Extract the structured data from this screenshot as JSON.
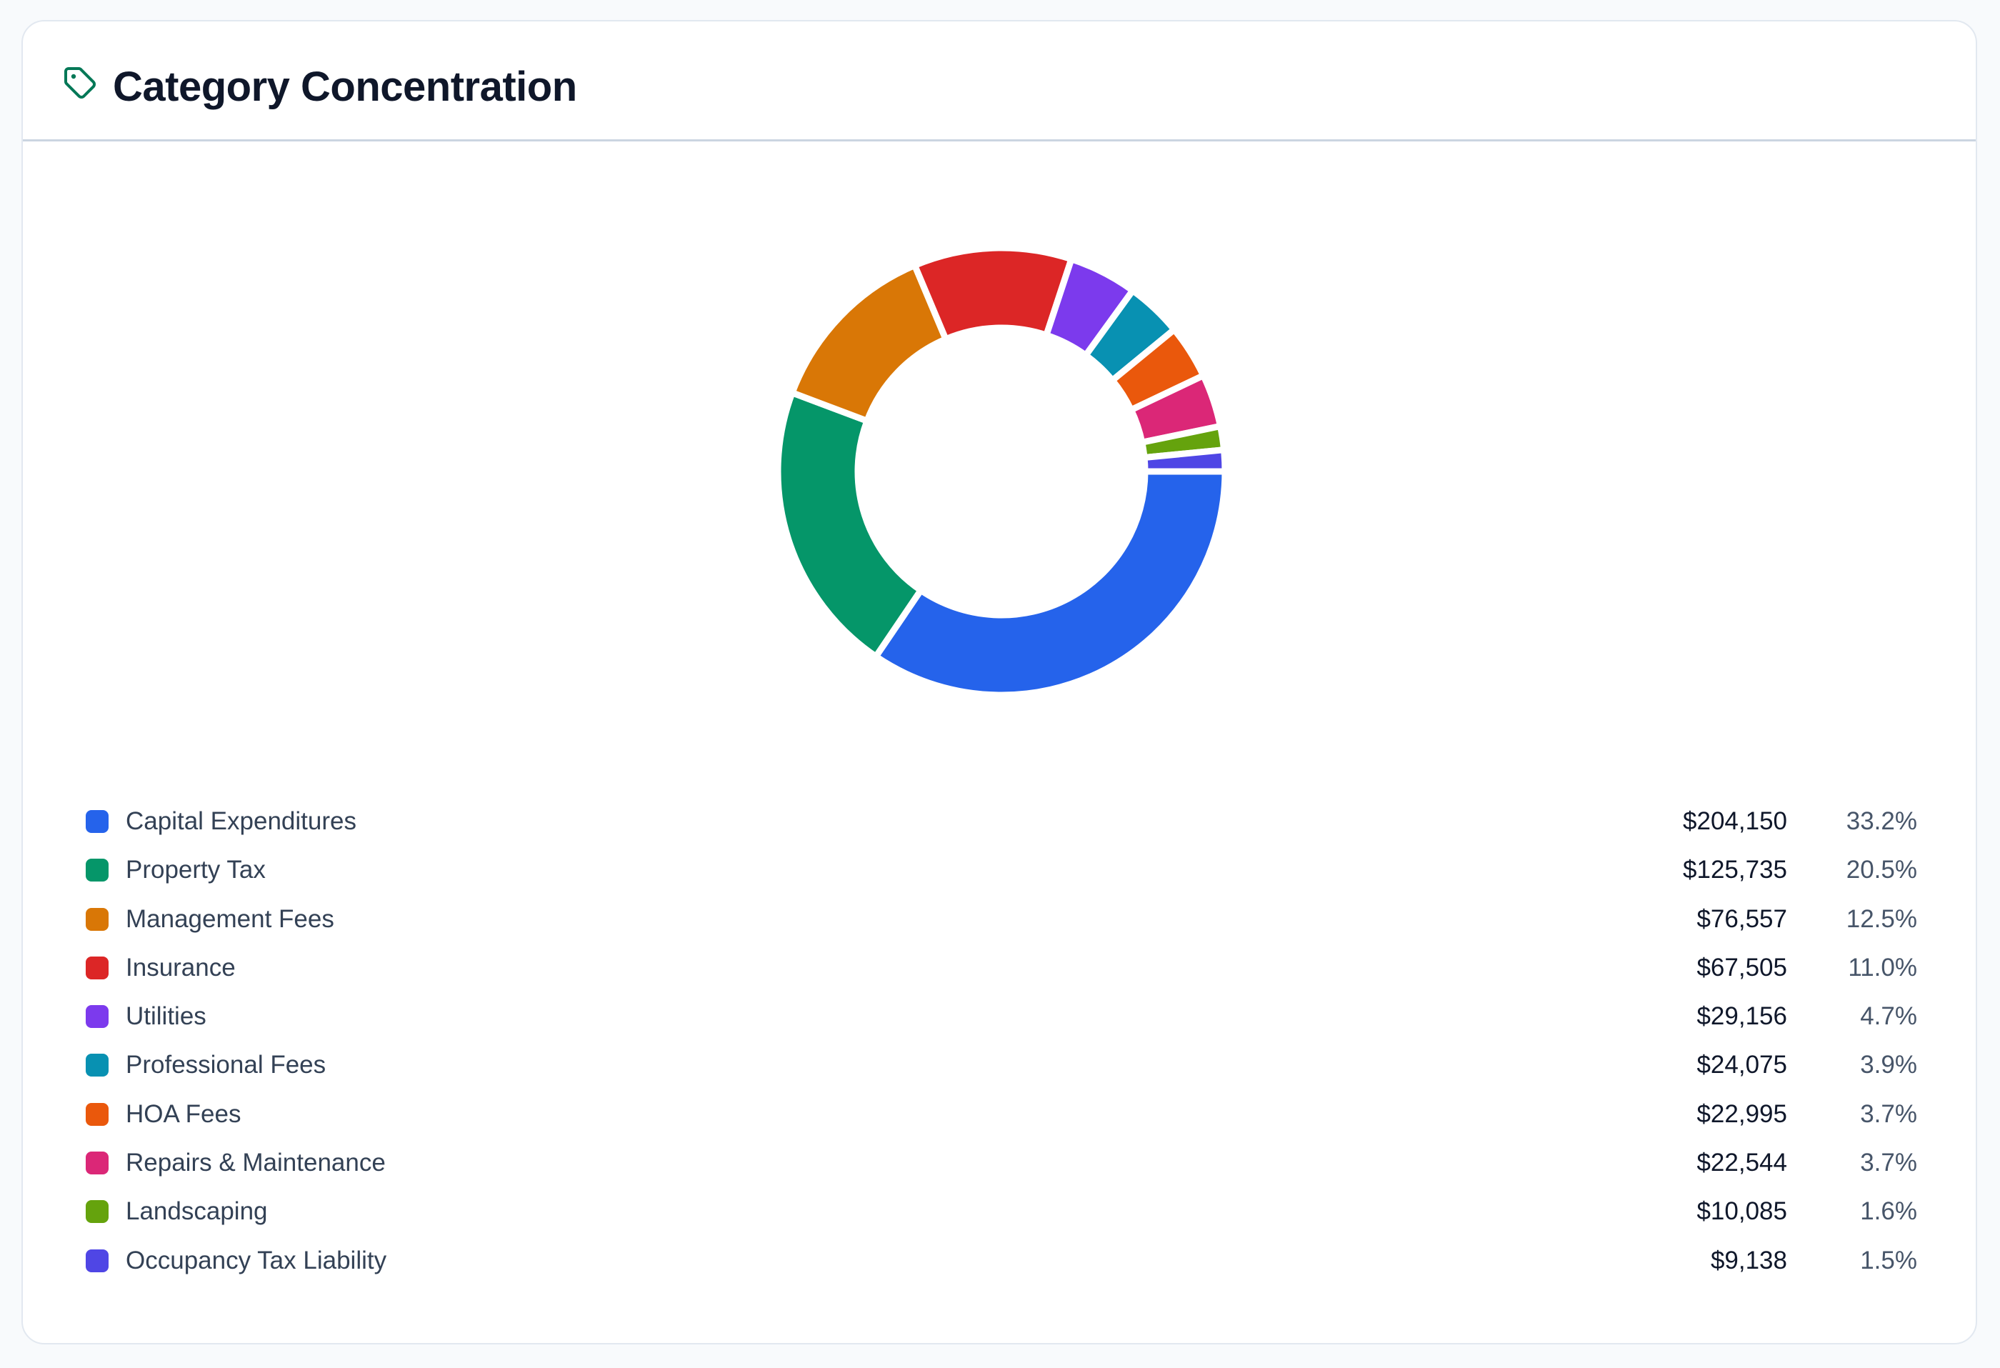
{
  "card": {
    "title": "Category Concentration",
    "icon": "tag-icon",
    "icon_color": "#047857"
  },
  "chart_data": {
    "type": "pie",
    "variant": "donut",
    "title": "Category Concentration",
    "start": "right (3 o'clock), clockwise",
    "categories": [
      "Capital Expenditures",
      "Property Tax",
      "Management Fees",
      "Insurance",
      "Utilities",
      "Professional Fees",
      "HOA Fees",
      "Repairs & Maintenance",
      "Landscaping",
      "Occupancy Tax Liability"
    ],
    "values": [
      204150,
      125735,
      76557,
      67505,
      29156,
      24075,
      22995,
      22544,
      10085,
      9138
    ],
    "value_labels": [
      "$204,150",
      "$125,735",
      "$76,557",
      "$67,505",
      "$29,156",
      "$24,075",
      "$22,995",
      "$22,544",
      "$10,085",
      "$9,138"
    ],
    "percent_labels": [
      "33.2%",
      "20.5%",
      "12.5%",
      "11.0%",
      "4.7%",
      "3.9%",
      "3.7%",
      "3.7%",
      "1.6%",
      "1.5%"
    ],
    "colors": [
      "#2563eb",
      "#059669",
      "#d97706",
      "#dc2626",
      "#7c3aed",
      "#0891b2",
      "#ea580c",
      "#db2777",
      "#65a30d",
      "#4f46e5"
    ],
    "legend_position": "bottom"
  }
}
